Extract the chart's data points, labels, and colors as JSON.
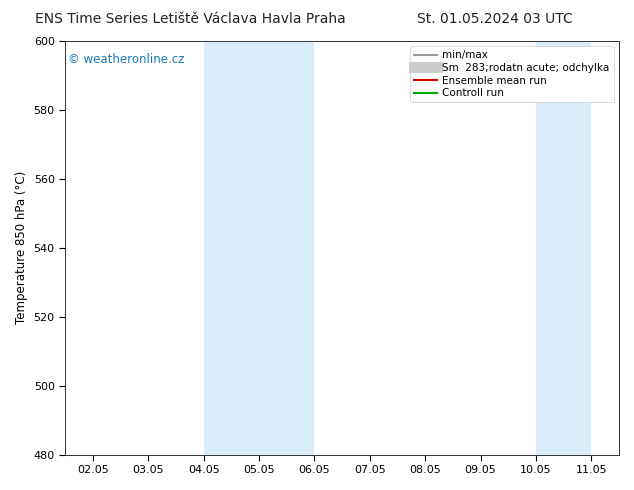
{
  "title_left": "ENS Time Series Letiště Václava Havla Praha",
  "title_right": "St. 01.05.2024 03 UTC",
  "ylabel": "Temperature 850 hPa (°C)",
  "ylim": [
    480,
    600
  ],
  "yticks": [
    480,
    500,
    520,
    540,
    560,
    580,
    600
  ],
  "x_labels": [
    "02.05",
    "03.05",
    "04.05",
    "05.05",
    "06.05",
    "07.05",
    "08.05",
    "09.05",
    "10.05",
    "11.05"
  ],
  "x_values": [
    0,
    1,
    2,
    3,
    4,
    5,
    6,
    7,
    8,
    9
  ],
  "xlim": [
    -0.5,
    9.5
  ],
  "shaded_regions": [
    {
      "x_start": 2.0,
      "x_end": 3.0,
      "color": "#d9ecf7"
    },
    {
      "x_start": 3.0,
      "x_end": 4.0,
      "color": "#d9ecf7"
    },
    {
      "x_start": 8.0,
      "x_end": 9.0,
      "color": "#d9ecf7"
    }
  ],
  "watermark": "© weatheronline.cz",
  "watermark_color": "#1a7ab8",
  "legend_entries": [
    {
      "label": "min/max",
      "color": "#999999",
      "lw": 1.5,
      "type": "line"
    },
    {
      "label": "Sm  283;rodatn acute; odchylka",
      "color": "#cccccc",
      "lw": 8,
      "type": "line"
    },
    {
      "label": "Ensemble mean run",
      "color": "#dd0000",
      "lw": 1.5,
      "type": "line"
    },
    {
      "label": "Controll run",
      "color": "#00aa00",
      "lw": 1.5,
      "type": "line"
    }
  ],
  "bg_color": "#ffffff",
  "plot_bg_color": "#ffffff",
  "border_color": "#333333",
  "title_fontsize": 10,
  "tick_fontsize": 8,
  "label_fontsize": 8.5,
  "watermark_fontsize": 8.5,
  "legend_fontsize": 7.5
}
